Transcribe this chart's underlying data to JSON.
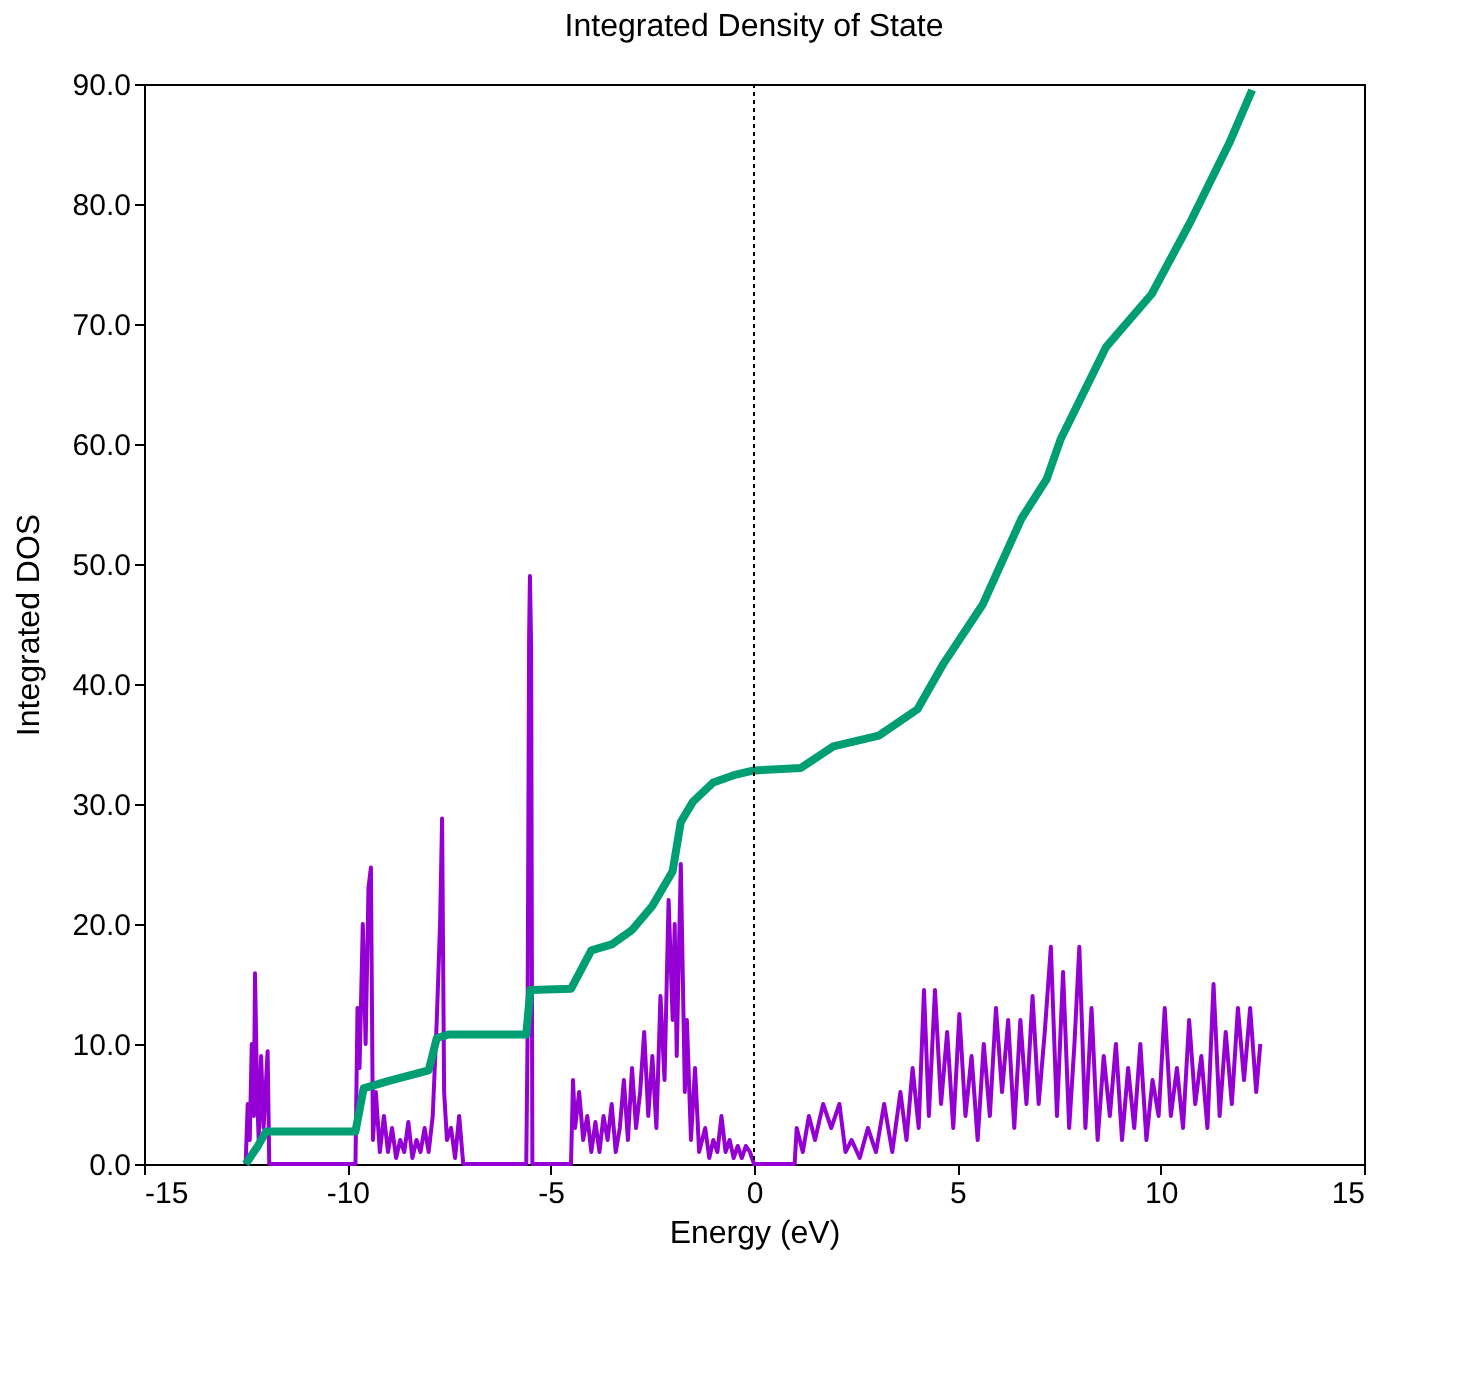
{
  "chart_data": {
    "type": "line",
    "title": "Integrated Density of State",
    "xlabel": "Energy (eV)",
    "ylabel": "Integrated DOS",
    "xlim": [
      -15,
      15
    ],
    "xticks": [
      -15,
      -10,
      -5,
      0,
      5,
      10,
      15
    ],
    "ylim": [
      0,
      90
    ],
    "yticks": [
      {
        "value": 0,
        "label": "0.0"
      },
      {
        "value": 10,
        "label": "10.0"
      },
      {
        "value": 20,
        "label": "20.0"
      },
      {
        "value": 30,
        "label": "30.0"
      },
      {
        "value": 40,
        "label": "40.0"
      },
      {
        "value": 50,
        "label": "50.0"
      },
      {
        "value": 60,
        "label": "60.0"
      },
      {
        "value": 70,
        "label": "70.0"
      },
      {
        "value": 80,
        "label": "80.0"
      },
      {
        "value": 90,
        "label": "90.0"
      }
    ],
    "grid": false,
    "marker": "none",
    "line_style": "solid",
    "ref_lines": [
      {
        "axis": "x",
        "value": 0,
        "color": "#000000",
        "line_style": "dotted"
      }
    ],
    "series": [
      {
        "color": "#9400d3",
        "x": [
          -12.5,
          -12.45,
          -12.4,
          -12.35,
          -12.3,
          -12.27,
          -12.22,
          -12.18,
          -12.12,
          -12.06,
          -11.96,
          -11.92,
          -9.8,
          -9.75,
          -9.7,
          -9.62,
          -9.55,
          -9.48,
          -9.42,
          -9.37,
          -9.3,
          -9.2,
          -9.1,
          -9.0,
          -8.9,
          -8.8,
          -8.7,
          -8.6,
          -8.5,
          -8.4,
          -8.3,
          -8.2,
          -8.1,
          -8.0,
          -7.9,
          -7.8,
          -7.72,
          -7.67,
          -7.62,
          -7.55,
          -7.45,
          -7.35,
          -7.25,
          -7.15,
          -5.6,
          -5.57,
          -5.53,
          -5.51,
          -5.48,
          -5.45,
          -4.5,
          -4.45,
          -4.4,
          -4.3,
          -4.2,
          -4.1,
          -4.0,
          -3.9,
          -3.8,
          -3.7,
          -3.6,
          -3.5,
          -3.4,
          -3.3,
          -3.2,
          -3.1,
          -3.0,
          -2.9,
          -2.8,
          -2.7,
          -2.6,
          -2.5,
          -2.4,
          -2.3,
          -2.2,
          -2.1,
          -2.0,
          -1.95,
          -1.9,
          -1.8,
          -1.7,
          -1.65,
          -1.55,
          -1.45,
          -1.35,
          -1.2,
          -1.1,
          -1.0,
          -0.9,
          -0.8,
          -0.7,
          -0.6,
          -0.5,
          -0.4,
          -0.3,
          -0.2,
          -0.1,
          0.0,
          1.0,
          1.05,
          1.2,
          1.35,
          1.5,
          1.7,
          1.9,
          2.1,
          2.25,
          2.4,
          2.6,
          2.8,
          3.0,
          3.2,
          3.4,
          3.6,
          3.75,
          3.9,
          4.05,
          4.18,
          4.3,
          4.45,
          4.6,
          4.75,
          4.9,
          5.05,
          5.2,
          5.35,
          5.5,
          5.65,
          5.8,
          5.95,
          6.1,
          6.25,
          6.4,
          6.55,
          6.7,
          6.85,
          7.0,
          7.15,
          7.3,
          7.45,
          7.6,
          7.75,
          7.88,
          8.0,
          8.15,
          8.3,
          8.45,
          8.6,
          8.75,
          8.9,
          9.05,
          9.2,
          9.35,
          9.5,
          9.65,
          9.8,
          9.95,
          10.1,
          10.25,
          10.4,
          10.55,
          10.7,
          10.85,
          11.0,
          11.15,
          11.3,
          11.45,
          11.6,
          11.75,
          11.9,
          12.05,
          12.2,
          12.35,
          12.45
        ],
        "values": [
          0,
          5,
          2,
          10,
          4,
          15.9,
          6,
          2,
          9,
          3,
          9.4,
          0,
          0,
          13,
          8,
          20,
          10,
          23,
          24.7,
          2,
          6,
          1,
          4,
          1,
          3,
          0.5,
          2,
          1,
          3.5,
          0.5,
          2,
          1,
          3,
          1,
          4,
          12,
          20,
          28.8,
          6,
          2,
          3,
          0.5,
          4,
          0,
          0,
          10,
          44,
          49,
          43,
          0,
          0,
          7,
          3,
          6,
          2,
          4,
          1,
          3.5,
          1,
          4,
          2,
          5,
          1,
          3,
          7,
          2,
          8,
          3,
          6,
          11,
          4,
          9,
          3,
          14,
          7,
          22,
          12,
          20,
          9,
          25,
          6,
          12,
          2,
          8,
          1,
          3,
          0.5,
          2,
          1,
          4,
          1,
          2,
          0.5,
          1.5,
          0.5,
          1.5,
          1,
          0,
          0,
          3,
          1,
          4,
          2,
          5,
          3,
          5,
          1,
          2,
          0.5,
          3,
          1,
          5,
          1,
          6,
          2,
          8,
          3,
          14.5,
          4,
          14.5,
          5,
          11,
          3,
          12.5,
          4,
          9,
          2,
          10,
          4,
          13,
          6,
          12,
          3,
          12,
          5,
          14,
          5,
          11,
          18.1,
          4,
          16,
          3,
          10,
          18.1,
          3,
          13,
          2,
          9,
          4,
          10,
          2,
          8,
          3,
          10,
          2,
          7,
          4,
          13,
          4,
          8,
          3,
          12,
          5,
          9,
          3,
          15,
          4,
          11,
          5,
          13,
          7,
          13,
          6,
          10
        ]
      },
      {
        "color": "#009e73",
        "x": [
          -12.5,
          -12.2,
          -12.0,
          -9.8,
          -9.6,
          -9.0,
          -8.0,
          -7.8,
          -7.5,
          -5.6,
          -5.5,
          -4.5,
          -4.0,
          -3.5,
          -3.0,
          -2.5,
          -2.0,
          -1.8,
          -1.5,
          -1.0,
          -0.5,
          0.0,
          1.15,
          1.95,
          3.07,
          4.02,
          4.66,
          5.62,
          6.58,
          7.2,
          7.54,
          8.66,
          9.78,
          10.73,
          11.69,
          12.25
        ],
        "values": [
          0,
          1.5,
          2.7,
          2.7,
          6.3,
          6.9,
          7.8,
          10.5,
          10.8,
          10.8,
          14.5,
          14.6,
          17.8,
          18.3,
          19.5,
          21.5,
          24.4,
          28.5,
          30.2,
          31.8,
          32.4,
          32.8,
          33.0,
          34.8,
          35.7,
          37.9,
          41.7,
          46.6,
          53.8,
          57.1,
          60.4,
          68.1,
          72.5,
          78.5,
          85.1,
          89.5
        ]
      }
    ]
  }
}
